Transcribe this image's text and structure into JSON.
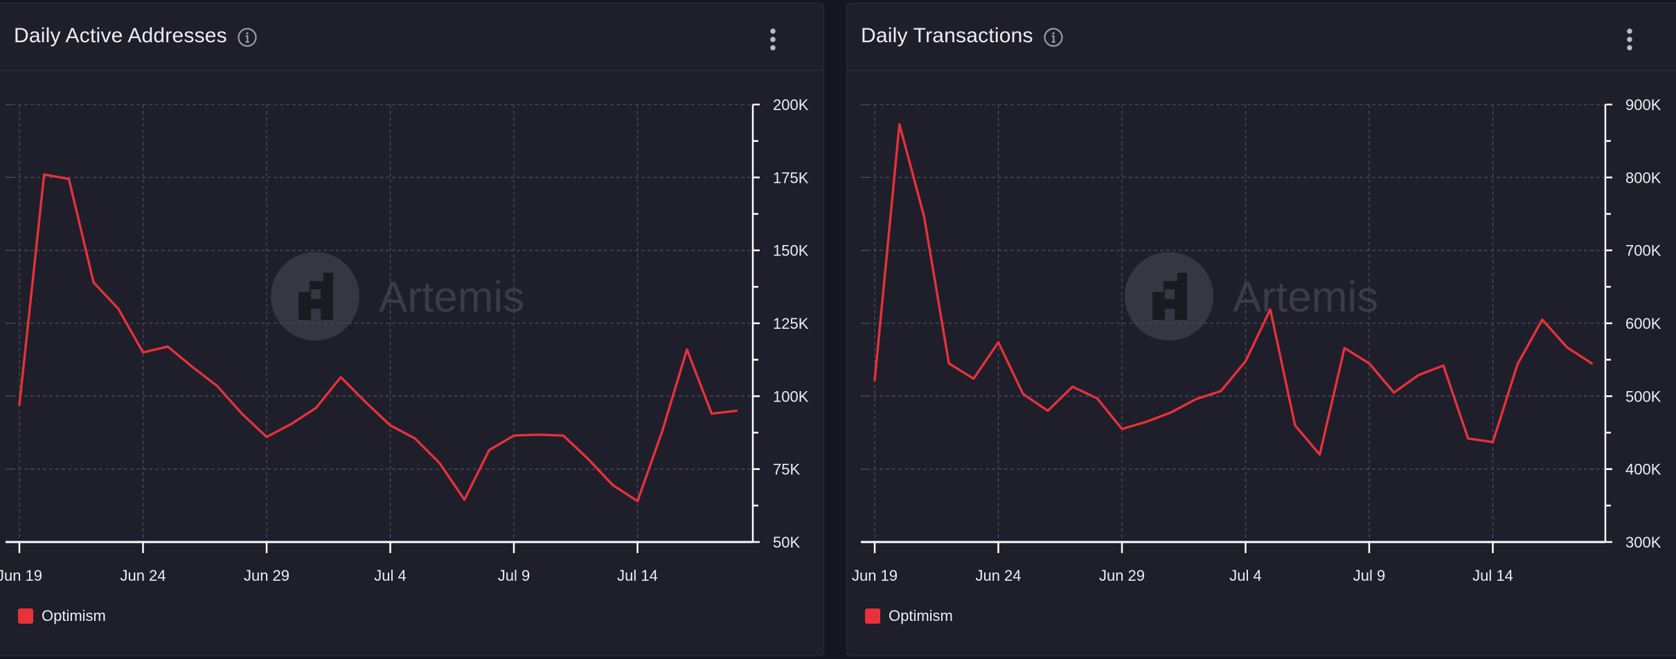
{
  "colors": {
    "line": "#e8313a",
    "grid": "#4a4d5c",
    "axis": "#ffffff",
    "text": "#eceef3",
    "watermark": "#3a3c46"
  },
  "watermark_text": "Artemis",
  "chart_data": [
    {
      "type": "line",
      "title": "Daily Active Addresses",
      "x_tick_labels": [
        "Jun 19",
        "Jun 24",
        "Jun 29",
        "Jul 4",
        "Jul 9",
        "Jul 14"
      ],
      "y_tick_labels": [
        "200K",
        "175K",
        "150K",
        "125K",
        "100K",
        "75K",
        "50K"
      ],
      "y_ticks": [
        200000,
        175000,
        150000,
        125000,
        100000,
        75000,
        50000
      ],
      "ylim": [
        50000,
        200000
      ],
      "grid": true,
      "legend_position": "bottom-left",
      "series": [
        {
          "name": "Optimism",
          "x": [
            "Jun 19",
            "Jun 20",
            "Jun 21",
            "Jun 22",
            "Jun 23",
            "Jun 24",
            "Jun 25",
            "Jun 26",
            "Jun 27",
            "Jun 28",
            "Jun 29",
            "Jun 30",
            "Jul 1",
            "Jul 2",
            "Jul 3",
            "Jul 4",
            "Jul 5",
            "Jul 6",
            "Jul 7",
            "Jul 8",
            "Jul 9",
            "Jul 10",
            "Jul 11",
            "Jul 12",
            "Jul 13",
            "Jul 14",
            "Jul 15",
            "Jul 16",
            "Jul 17",
            "Jul 18"
          ],
          "values": [
            97000,
            176000,
            174500,
            139000,
            130000,
            115000,
            117000,
            110000,
            103500,
            94000,
            86000,
            90500,
            96000,
            106500,
            98000,
            90000,
            85500,
            77000,
            64500,
            81500,
            86500,
            86800,
            86500,
            78500,
            69500,
            64000,
            88000,
            116000,
            94000,
            95000
          ]
        }
      ]
    },
    {
      "type": "line",
      "title": "Daily Transactions",
      "x_tick_labels": [
        "Jun 19",
        "Jun 24",
        "Jun 29",
        "Jul 4",
        "Jul 9",
        "Jul 14"
      ],
      "y_tick_labels": [
        "900K",
        "800K",
        "700K",
        "600K",
        "500K",
        "400K",
        "300K"
      ],
      "y_ticks": [
        900000,
        800000,
        700000,
        600000,
        500000,
        400000,
        300000
      ],
      "ylim": [
        300000,
        900000
      ],
      "grid": true,
      "legend_position": "bottom-left",
      "series": [
        {
          "name": "Optimism",
          "x": [
            "Jun 19",
            "Jun 20",
            "Jun 21",
            "Jun 22",
            "Jun 23",
            "Jun 24",
            "Jun 25",
            "Jun 26",
            "Jun 27",
            "Jun 28",
            "Jun 29",
            "Jun 30",
            "Jul 1",
            "Jul 2",
            "Jul 3",
            "Jul 4",
            "Jul 5",
            "Jul 6",
            "Jul 7",
            "Jul 8",
            "Jul 9",
            "Jul 10",
            "Jul 11",
            "Jul 12",
            "Jul 13",
            "Jul 14",
            "Jul 15",
            "Jul 16",
            "Jul 17",
            "Jul 18"
          ],
          "values": [
            522000,
            873000,
            746000,
            545000,
            524000,
            574000,
            503000,
            480000,
            513000,
            497000,
            455000,
            465000,
            478000,
            496000,
            507000,
            548000,
            619000,
            460000,
            420000,
            566000,
            545000,
            505000,
            529000,
            542000,
            442000,
            437000,
            544000,
            605000,
            567000,
            545000
          ]
        }
      ]
    }
  ]
}
